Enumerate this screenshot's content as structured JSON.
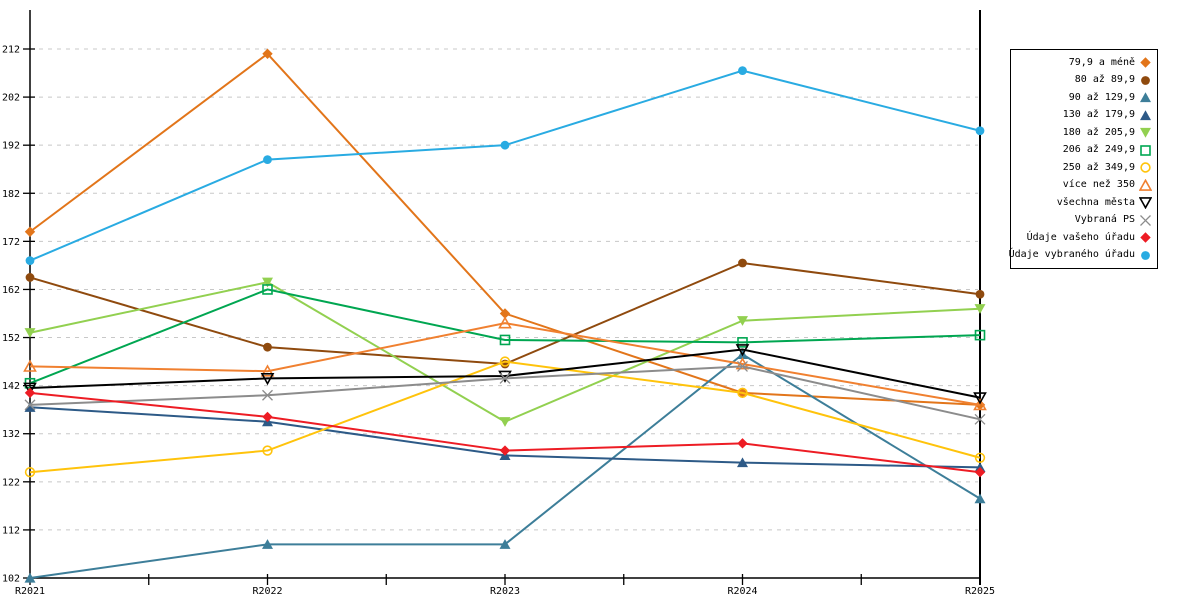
{
  "chart_data": {
    "type": "line",
    "title": "",
    "xlabel": "",
    "ylabel": "",
    "categories": [
      "R2021",
      "R2022",
      "R2023",
      "R2024",
      "R2025"
    ],
    "y_axis": {
      "min": 102,
      "max": 212,
      "step": 10
    },
    "grid": true,
    "legend_position": "right",
    "highlight_category": "R2025",
    "series": [
      {
        "name": "79,9 a méně",
        "color": "#E2751A",
        "marker": "diamond",
        "filled": true,
        "values": [
          174,
          211,
          157,
          140.5,
          138
        ]
      },
      {
        "name": "80 až 89,9",
        "color": "#8F4A0E",
        "marker": "circle",
        "filled": true,
        "values": [
          164.5,
          150,
          146.5,
          167.5,
          161
        ]
      },
      {
        "name": "90 až 129,9",
        "color": "#3D7E99",
        "marker": "triangle-up",
        "filled": true,
        "values": [
          102,
          109,
          109,
          148.5,
          118.5
        ]
      },
      {
        "name": "130 až 179,9",
        "color": "#2D5A87",
        "marker": "triangle-up",
        "filled": true,
        "values": [
          137.5,
          134.5,
          127.5,
          126,
          125
        ]
      },
      {
        "name": "180 až 205,9",
        "color": "#92D050",
        "marker": "triangle-down",
        "filled": true,
        "values": [
          153,
          163.5,
          134.5,
          155.5,
          158
        ]
      },
      {
        "name": "206 až 249,9",
        "color": "#00A651",
        "marker": "square",
        "filled": false,
        "values": [
          142.5,
          162,
          151.5,
          151,
          152.5
        ]
      },
      {
        "name": "250 až 349,9",
        "color": "#FFC30B",
        "marker": "circle",
        "filled": false,
        "values": [
          124,
          128.5,
          147,
          140.5,
          127
        ]
      },
      {
        "name": "více než 350",
        "color": "#F08030",
        "marker": "triangle-up",
        "filled": false,
        "values": [
          146,
          145,
          155,
          146.5,
          138
        ]
      },
      {
        "name": "všechna města",
        "color": "#000000",
        "marker": "triangle-down",
        "filled": false,
        "values": [
          141.5,
          143.5,
          144,
          149.5,
          139.5
        ]
      },
      {
        "name": "Vybraná PS",
        "color": "#8C8C8C",
        "marker": "x",
        "filled": false,
        "values": [
          138,
          140,
          143.5,
          146,
          135
        ]
      },
      {
        "name": "Údaje vašeho úřadu",
        "color": "#ED1C24",
        "marker": "diamond",
        "filled": true,
        "values": [
          140.5,
          135.5,
          128.5,
          130,
          124
        ]
      },
      {
        "name": "Údaje vybraného úřadu",
        "color": "#29ABE2",
        "marker": "circle",
        "filled": true,
        "values": [
          168,
          189,
          192,
          207.5,
          195
        ]
      }
    ]
  },
  "colors": {
    "background": "#FFFFFF",
    "grid": "#C8C8C8",
    "axis": "#000000",
    "tick_label": "#000000"
  }
}
